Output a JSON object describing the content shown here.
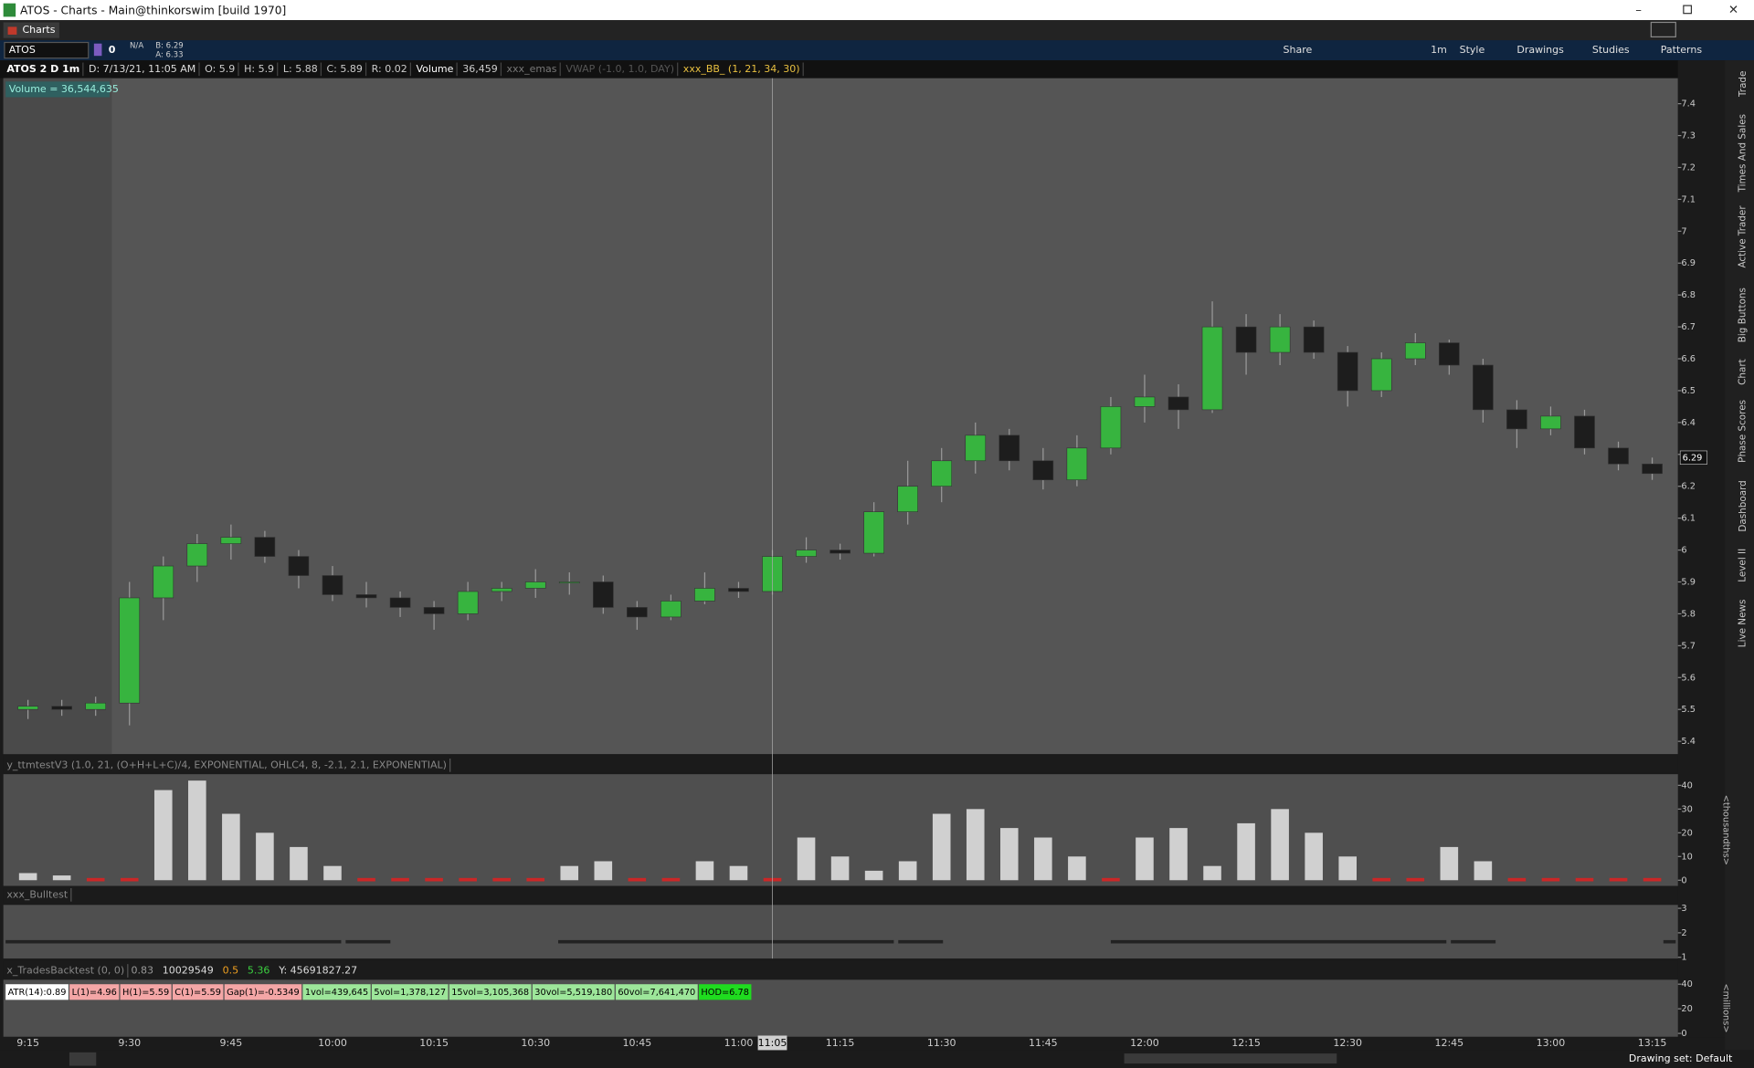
{
  "window": {
    "title": "ATOS - Charts -  Main@thinkorswim [build 1970]",
    "tab": "Charts"
  },
  "toolbar": {
    "symbol": "ATOS",
    "count": "0",
    "na": "N/A",
    "bid": "B: 6.29",
    "ask": "A: 6.33",
    "timeframe": "1m",
    "buttons": [
      "Share",
      "Style",
      "Drawings",
      "Studies",
      "Patterns"
    ]
  },
  "info": [
    "ATOS 2 D 1m",
    "D: 7/13/21, 11:05 AM",
    "O: 5.9",
    "H: 5.9",
    "L: 5.88",
    "C: 5.89",
    "R: 0.02",
    "Volume",
    "36,459",
    "xxx_emas",
    "VWAP (-1.0, 1.0, DAY)",
    "xxx_BB_ (1, 21, 34, 30)"
  ],
  "side_tabs": [
    "Trade",
    "Times And Sales",
    "Active Trader",
    "Big Buttons",
    "Chart",
    "Phase Scores",
    "Dashboard",
    "Level II",
    "Live News"
  ],
  "status": "Drawing set: Default",
  "x_axis": {
    "ticks": [
      "9:15",
      "9:30",
      "9:45",
      "10:00",
      "10:15",
      "10:30",
      "10:45",
      "11:00",
      "11:15",
      "11:30",
      "11:45",
      "12:00",
      "12:15",
      "12:30",
      "12:45",
      "13:00",
      "13:15"
    ],
    "cursor": "11:05"
  },
  "chart_data": [
    {
      "type": "candlestick",
      "label": "Volume = 36,544,635",
      "last_value": 6.29,
      "up_color": "#37b43f",
      "down_color": "#1d1d1d",
      "x": [
        "9:15",
        "9:20",
        "9:25",
        "9:30",
        "9:35",
        "9:40",
        "9:45",
        "9:50",
        "9:55",
        "10:00",
        "10:05",
        "10:10",
        "10:15",
        "10:20",
        "10:25",
        "10:30",
        "10:35",
        "10:40",
        "10:45",
        "10:50",
        "10:55",
        "11:00",
        "11:05",
        "11:10",
        "11:15",
        "11:20",
        "11:25",
        "11:30",
        "11:35",
        "11:40",
        "11:45",
        "11:50",
        "11:55",
        "12:00",
        "12:05",
        "12:10",
        "12:15",
        "12:20",
        "12:25",
        "12:30",
        "12:35",
        "12:40",
        "12:45",
        "12:50",
        "12:55",
        "13:00",
        "13:05",
        "13:10",
        "13:15"
      ],
      "open": [
        5.5,
        5.51,
        5.5,
        5.52,
        5.85,
        5.95,
        6.02,
        6.04,
        5.98,
        5.92,
        5.86,
        5.85,
        5.82,
        5.8,
        5.87,
        5.88,
        5.9,
        5.9,
        5.82,
        5.79,
        5.84,
        5.88,
        5.87,
        5.98,
        6.0,
        5.99,
        6.12,
        6.2,
        6.28,
        6.36,
        6.28,
        6.22,
        6.32,
        6.45,
        6.48,
        6.44,
        6.7,
        6.62,
        6.7,
        6.62,
        6.5,
        6.6,
        6.65,
        6.58,
        6.44,
        6.38,
        6.42,
        6.32,
        6.27
      ],
      "high": [
        5.53,
        5.53,
        5.54,
        5.9,
        5.98,
        6.05,
        6.08,
        6.06,
        6.0,
        5.95,
        5.9,
        5.87,
        5.84,
        5.9,
        5.9,
        5.94,
        5.93,
        5.92,
        5.84,
        5.86,
        5.93,
        5.9,
        6.0,
        6.04,
        6.02,
        6.15,
        6.28,
        6.32,
        6.4,
        6.38,
        6.32,
        6.36,
        6.48,
        6.55,
        6.52,
        6.78,
        6.74,
        6.74,
        6.72,
        6.64,
        6.62,
        6.68,
        6.66,
        6.6,
        6.47,
        6.45,
        6.44,
        6.34,
        6.29
      ],
      "low": [
        5.47,
        5.48,
        5.48,
        5.45,
        5.78,
        5.9,
        5.97,
        5.96,
        5.88,
        5.84,
        5.82,
        5.79,
        5.75,
        5.78,
        5.84,
        5.85,
        5.86,
        5.8,
        5.75,
        5.78,
        5.83,
        5.85,
        5.86,
        5.96,
        5.97,
        5.98,
        6.08,
        6.15,
        6.24,
        6.25,
        6.19,
        6.2,
        6.3,
        6.4,
        6.38,
        6.43,
        6.55,
        6.58,
        6.6,
        6.45,
        6.48,
        6.58,
        6.55,
        6.4,
        6.32,
        6.36,
        6.3,
        6.25,
        6.22
      ],
      "close": [
        5.51,
        5.5,
        5.52,
        5.85,
        5.95,
        6.02,
        6.04,
        5.98,
        5.92,
        5.86,
        5.85,
        5.82,
        5.8,
        5.87,
        5.88,
        5.9,
        5.9,
        5.82,
        5.79,
        5.84,
        5.88,
        5.87,
        5.98,
        6.0,
        5.99,
        6.12,
        6.2,
        6.28,
        6.36,
        6.28,
        6.22,
        6.32,
        6.45,
        6.48,
        6.44,
        6.7,
        6.62,
        6.7,
        6.62,
        6.5,
        6.6,
        6.65,
        6.58,
        6.44,
        6.38,
        6.42,
        6.32,
        6.27,
        6.24
      ],
      "ylim": [
        5.36,
        7.48
      ],
      "yticks": [
        5.4,
        5.5,
        5.6,
        5.7,
        5.8,
        5.9,
        6,
        6.1,
        6.2,
        6.3,
        6.4,
        6.5,
        6.6,
        6.7,
        6.8,
        6.9,
        7,
        7.1,
        7.2,
        7.3,
        7.4
      ]
    },
    {
      "type": "bar",
      "title": "y_ttmtestV3 (1.0, 21, (O+H+L+C)/4, EXPONENTIAL, OHLC4, 8, -2.1, 2.1, EXPONENTIAL)",
      "axis_label": "<thousandths>",
      "color": "#e6e6e6",
      "zero_color": "#e02020",
      "x": [
        "9:15",
        "9:20",
        "9:25",
        "9:30",
        "9:35",
        "9:40",
        "9:45",
        "9:50",
        "9:55",
        "10:00",
        "10:05",
        "10:10",
        "10:15",
        "10:20",
        "10:25",
        "10:30",
        "10:35",
        "10:40",
        "10:45",
        "10:50",
        "10:55",
        "11:00",
        "11:05",
        "11:10",
        "11:15",
        "11:20",
        "11:25",
        "11:30",
        "11:35",
        "11:40",
        "11:45",
        "11:50",
        "11:55",
        "12:00",
        "12:05",
        "12:10",
        "12:15",
        "12:20",
        "12:25",
        "12:30",
        "12:35",
        "12:40",
        "12:45",
        "12:50",
        "12:55",
        "13:00",
        "13:05",
        "13:10",
        "13:15"
      ],
      "values": [
        3,
        2,
        0,
        0,
        38,
        42,
        28,
        20,
        14,
        6,
        0,
        0,
        0,
        0,
        0,
        0,
        6,
        8,
        0,
        0,
        8,
        6,
        0,
        18,
        10,
        4,
        8,
        28,
        30,
        22,
        18,
        10,
        0,
        18,
        22,
        6,
        24,
        30,
        20,
        10,
        0,
        0,
        14,
        8,
        0,
        0,
        0,
        0,
        0
      ],
      "ylim": [
        -2.4,
        44.7
      ],
      "yticks": [
        0,
        10,
        20,
        30,
        40
      ]
    },
    {
      "type": "panel",
      "title": "xxx_Bulltest",
      "ylim": [
        0.95,
        3.14
      ],
      "yticks": [
        1,
        2,
        3
      ]
    },
    {
      "type": "panel",
      "title": "x_TradesBacktest (0, 0)",
      "axis_label": "<millions>",
      "readouts": [
        "0.83",
        "10029549",
        "0.5",
        "5.36",
        "Y: 45691827.27"
      ],
      "labels": [
        "ATR(14):0.89",
        "L(1)=4.96",
        "H(1)=5.59",
        "C(1)=5.59",
        "Gap(1)=-0.5349",
        "1vol=439,645",
        "5vol=1,378,127",
        "15vol=3,105,368",
        "30vol=5,519,180",
        "60vol=7,641,470",
        "HOD=6.78"
      ],
      "ylim": [
        -2.7,
        43.6
      ],
      "yticks": [
        0,
        20,
        40
      ]
    }
  ]
}
